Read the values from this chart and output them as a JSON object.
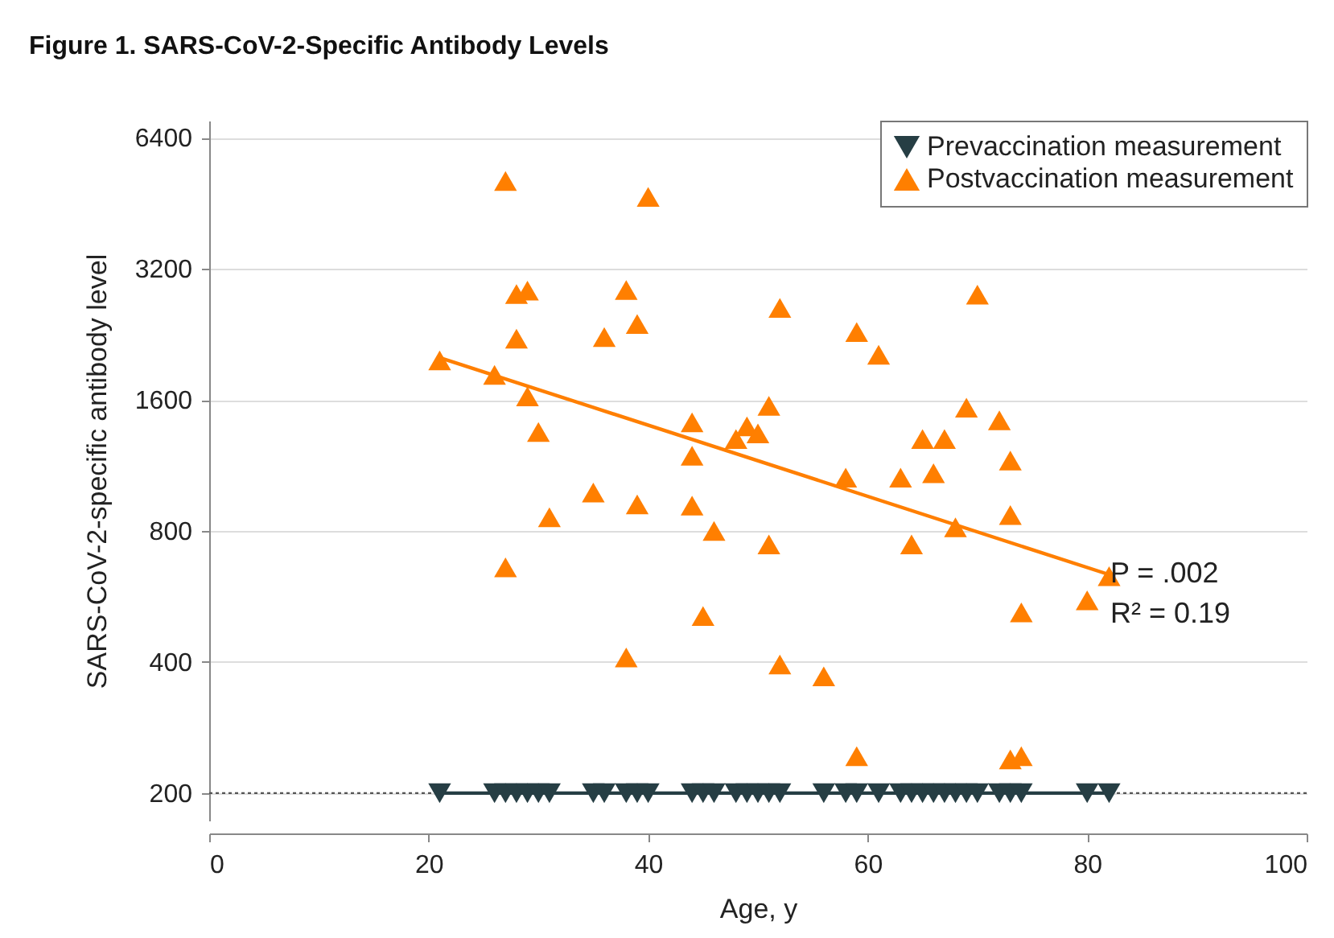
{
  "chart_data": {
    "type": "scatter",
    "title": "Figure 1.  SARS-CoV-2-Specific Antibody Levels",
    "xlabel": "Age, y",
    "ylabel": "SARS-CoV-2-specific antibody level",
    "xlim": [
      0,
      100
    ],
    "xticks": [
      0,
      20,
      40,
      60,
      80,
      100
    ],
    "ylim": [
      173,
      7000
    ],
    "yticks": [
      200,
      400,
      800,
      1600,
      3200,
      6400
    ],
    "log": "y",
    "grid": "y",
    "legend": "top right",
    "series": [
      {
        "name": "Prevaccination measurement",
        "type": "line",
        "marker": "triangle-down",
        "color": "#263e44",
        "x": [
          21,
          26,
          27,
          28,
          29,
          30,
          31,
          35,
          36,
          38,
          39,
          40,
          44,
          45,
          46,
          48,
          49,
          50,
          51,
          52,
          56,
          58,
          59,
          61,
          63,
          64,
          65,
          66,
          67,
          68,
          69,
          70,
          72,
          73,
          74,
          80,
          82
        ],
        "values": [
          200,
          200,
          200,
          200,
          200,
          200,
          200,
          200,
          200,
          200,
          200,
          200,
          200,
          200,
          200,
          200,
          200,
          200,
          200,
          200,
          200,
          200,
          200,
          200,
          200,
          200,
          200,
          200,
          200,
          200,
          200,
          200,
          200,
          200,
          200,
          200,
          200
        ]
      },
      {
        "name": "Postvaccination measurement",
        "marker": "triangle",
        "color": "#ff7f00",
        "x": [
          21,
          27,
          26,
          28,
          29,
          28,
          29,
          30,
          31,
          27,
          35,
          36,
          38,
          39,
          40,
          38,
          39,
          44,
          44,
          44,
          46,
          45,
          48,
          49,
          50,
          51,
          51,
          52,
          52,
          56,
          58,
          59,
          59,
          61,
          63,
          64,
          65,
          66,
          67,
          68,
          69,
          70,
          72,
          73,
          73,
          73,
          74,
          74,
          80,
          82
        ],
        "values": [
          1970,
          5090,
          1825,
          2800,
          2850,
          2210,
          1630,
          1350,
          860,
          660,
          980,
          2230,
          2860,
          2390,
          4680,
          410,
          920,
          1420,
          1190,
          915,
          800,
          510,
          1300,
          1390,
          1340,
          1550,
          745,
          2600,
          395,
          371,
          1060,
          2290,
          243,
          2030,
          1060,
          745,
          1300,
          1085,
          1300,
          815,
          1535,
          2790,
          1435,
          1160,
          870,
          239,
          520,
          243,
          554,
          630
        ]
      },
      {
        "type": "line",
        "marker": "none",
        "color": "#ff7f00",
        "x": [
          21,
          82
        ],
        "values": [
          2000,
          635
        ]
      }
    ],
    "ref_lines": [
      {
        "axis": "y",
        "value": 200,
        "line_style": "dotted",
        "color": "#555555"
      }
    ],
    "annotations": [
      "P = .002",
      "R² = 0.19"
    ]
  }
}
